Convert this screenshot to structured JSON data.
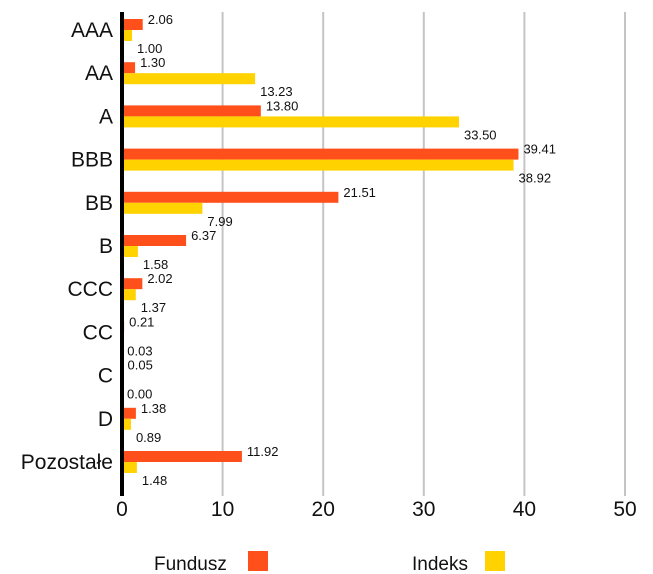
{
  "chart_data": {
    "type": "bar",
    "orientation": "horizontal",
    "categories": [
      "AAA",
      "AA",
      "A",
      "BBB",
      "BB",
      "B",
      "CCC",
      "CC",
      "C",
      "D",
      "Pozostałe"
    ],
    "series": [
      {
        "name": "Fundusz",
        "color": "#ff4f1a",
        "values": [
          2.06,
          1.3,
          13.8,
          39.41,
          21.51,
          6.37,
          2.02,
          0.21,
          0.05,
          1.38,
          11.92
        ],
        "labels": [
          "2.06",
          "1.30",
          "13.80",
          "39.41",
          "21.51",
          "6.37",
          "2.02",
          "0.21",
          "0.05",
          "1.38",
          "11.92"
        ]
      },
      {
        "name": "Indeks",
        "color": "#ffd200",
        "values": [
          1.0,
          13.23,
          33.5,
          38.92,
          7.99,
          1.58,
          1.37,
          0.03,
          0.0,
          0.89,
          1.48
        ],
        "labels": [
          "1.00",
          "13.23",
          "33.50",
          "38.92",
          "7.99",
          "1.58",
          "1.37",
          "0.03",
          "0.00",
          "0.89",
          "1.48"
        ]
      }
    ],
    "xlim": [
      0,
      50
    ],
    "xticks": [
      0,
      10,
      20,
      30,
      40,
      50
    ],
    "xtick_labels": [
      "0",
      "10",
      "20",
      "30",
      "40",
      "50"
    ],
    "grid": "vertical",
    "legend": "bottom",
    "title": "",
    "xlabel": "",
    "ylabel": ""
  }
}
